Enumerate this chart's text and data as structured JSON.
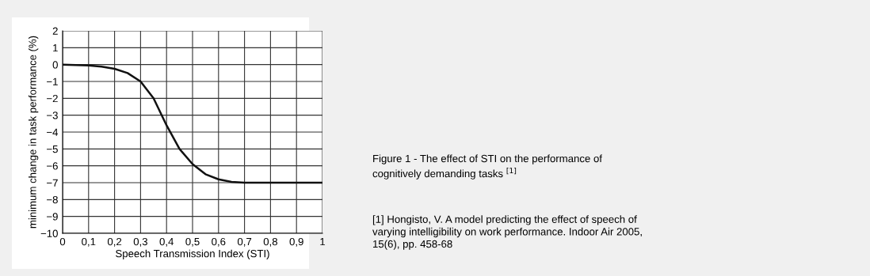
{
  "chart_data": {
    "type": "line",
    "xlabel": "Speech Transmission Index (STI)",
    "ylabel": "minimum change in task performance (%)",
    "x": [
      0,
      0.1,
      0.15,
      0.2,
      0.25,
      0.3,
      0.35,
      0.4,
      0.45,
      0.5,
      0.55,
      0.6,
      0.65,
      0.7,
      0.8,
      0.9,
      1
    ],
    "series": [
      {
        "color": "#111111",
        "values": [
          0,
          -0.05,
          -0.12,
          -0.25,
          -0.5,
          -1.0,
          -2.0,
          -3.6,
          -5.0,
          -5.9,
          -6.5,
          -6.8,
          -6.95,
          -7,
          -7,
          -7,
          -7
        ]
      }
    ],
    "xlim": [
      0,
      1
    ],
    "xticks": [
      0,
      {
        "value": 0.1,
        "label": "0,1"
      },
      {
        "value": 0.2,
        "label": "0,2"
      },
      {
        "value": 0.3,
        "label": "0,3"
      },
      {
        "value": 0.4,
        "label": "0,4"
      },
      {
        "value": 0.5,
        "label": "0,5"
      },
      {
        "value": 0.6,
        "label": "0,6"
      },
      {
        "value": 0.7,
        "label": "0,7"
      },
      {
        "value": 0.8,
        "label": "0,8"
      },
      {
        "value": 0.9,
        "label": "0,9"
      },
      1
    ],
    "ylim": [
      -10,
      2
    ],
    "yticks": [
      2,
      1,
      0,
      {
        "value": -1,
        "label": "−1"
      },
      {
        "value": -2,
        "label": "−2"
      },
      {
        "value": -3,
        "label": "−3"
      },
      {
        "value": -4,
        "label": "−4"
      },
      {
        "value": -5,
        "label": "−5"
      },
      {
        "value": -6,
        "label": "−6"
      },
      {
        "value": -7,
        "label": "−7"
      },
      {
        "value": -8,
        "label": "−8"
      },
      {
        "value": -9,
        "label": "−9"
      },
      {
        "value": -10,
        "label": "−10"
      }
    ],
    "grid": true,
    "marker": "none",
    "line_style": "solid",
    "annotations": [
      "Figure 1 - The effect of STI on the performance of\ncognitively demanding tasks $^{[1]}$",
      "[1] Hongisto, V. A model predicting the effect of speech of\nvarying intelligibility on work performance. Indoor Air 2005,\n15(6), pp. 458-68"
    ]
  }
}
